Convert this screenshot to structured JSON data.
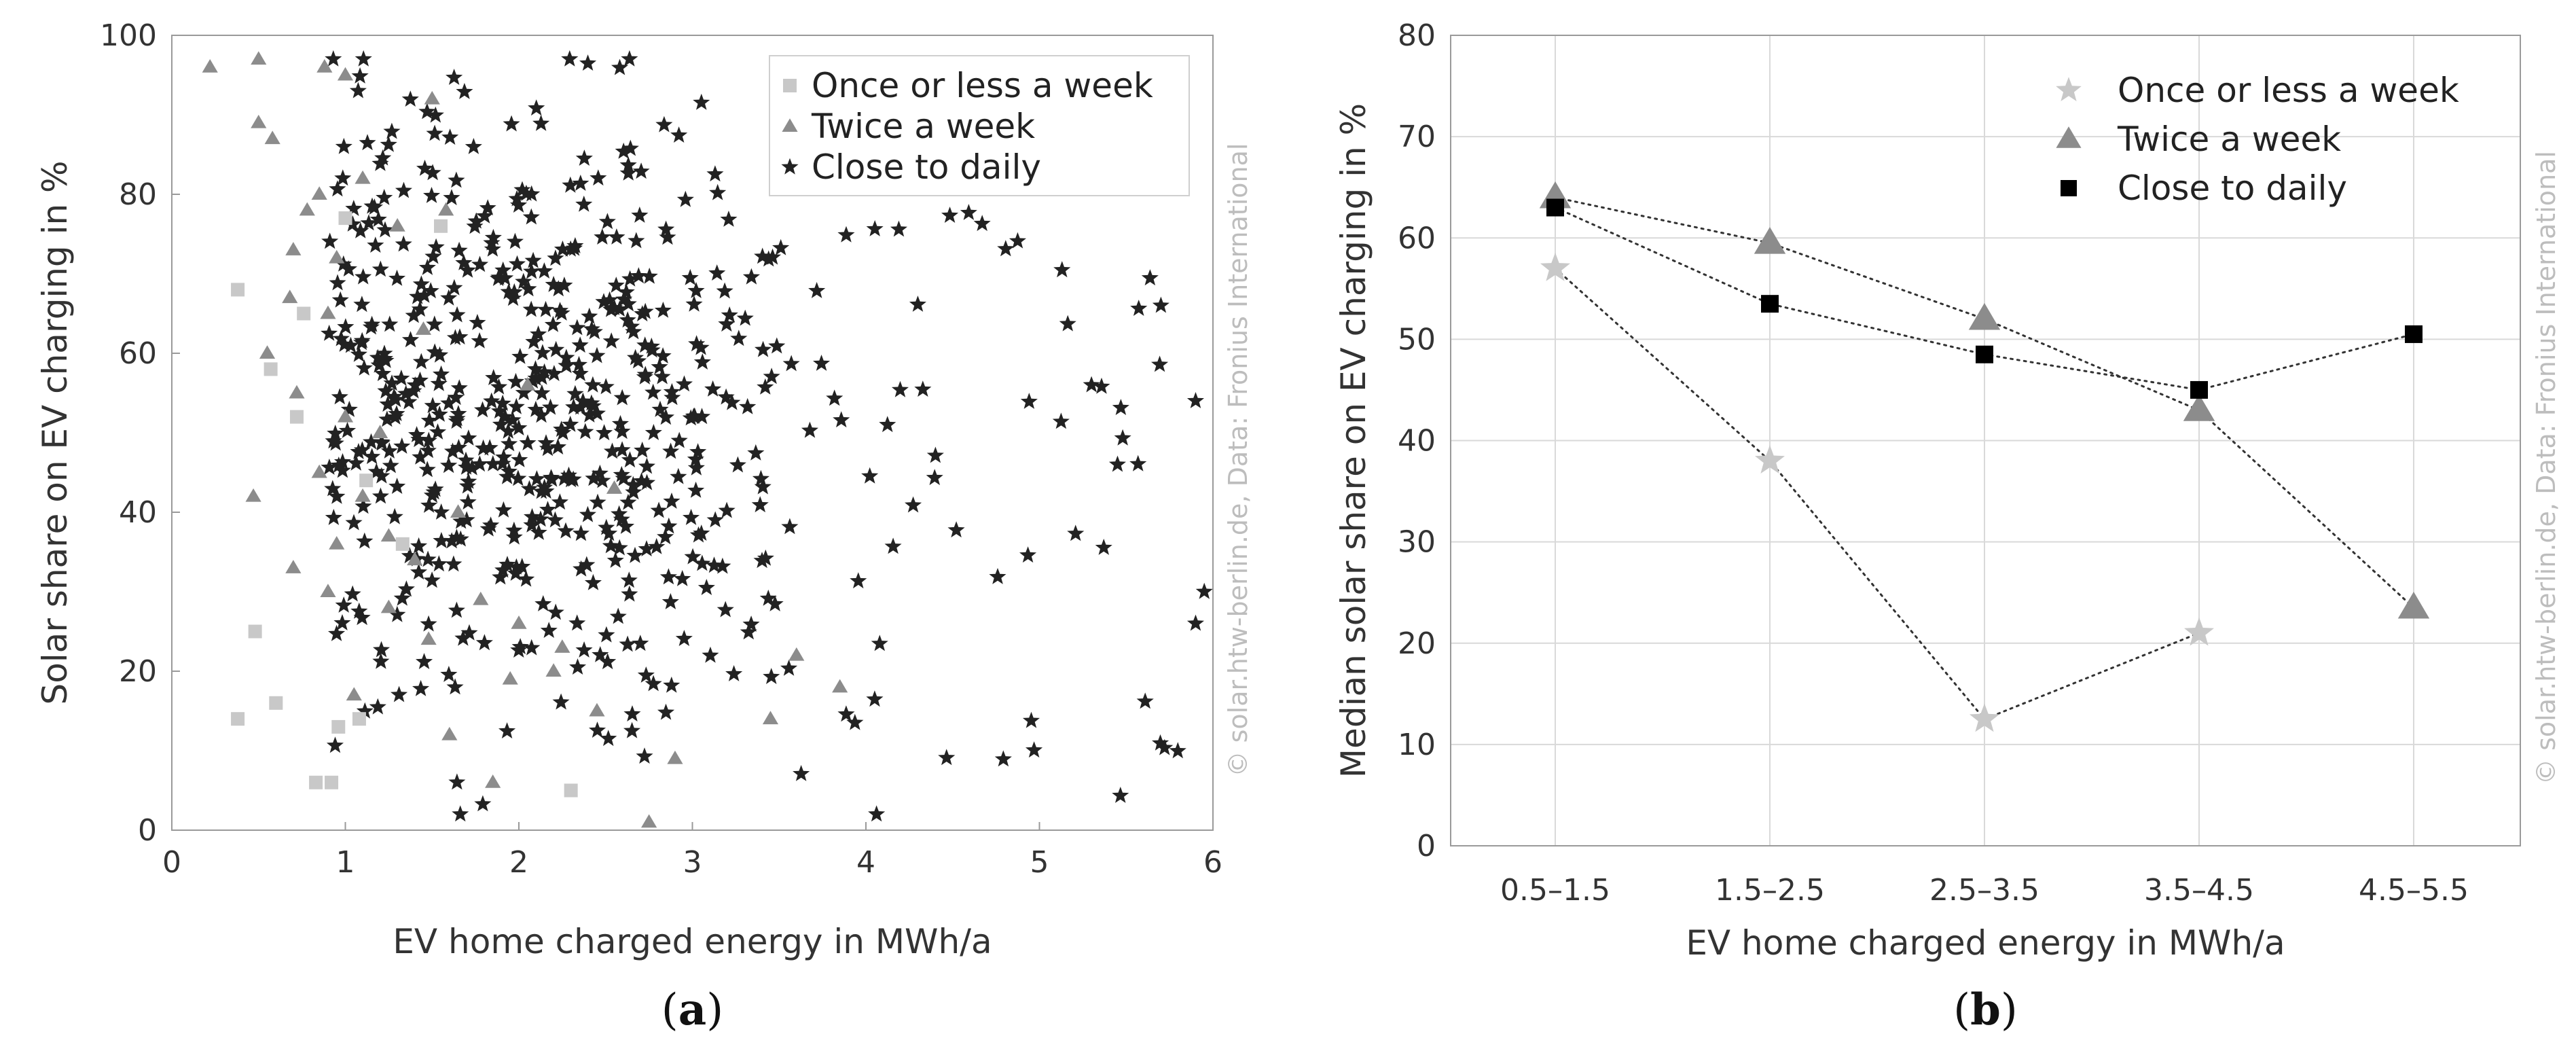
{
  "chart_data": [
    {
      "panel_label": "(a)",
      "type": "scatter",
      "xlabel": "EV home charged energy in MWh/a",
      "ylabel": "Solar share on EV charging in %",
      "xlim": [
        0,
        6
      ],
      "ylim": [
        0,
        100
      ],
      "xticks": [
        "0",
        "1",
        "2",
        "3",
        "4",
        "5",
        "6"
      ],
      "yticks": [
        "0",
        "20",
        "40",
        "60",
        "80",
        "100"
      ],
      "legend_position": "top-right",
      "watermark": "© solar.htw-berlin.de, Data: Fronius International",
      "series": [
        {
          "name": "Once or less a week",
          "marker": "square",
          "color": "#c8c8c8",
          "points": [
            [
              0.38,
              68
            ],
            [
              0.57,
              58
            ],
            [
              0.72,
              52
            ],
            [
              0.76,
              65
            ],
            [
              1.0,
              77
            ],
            [
              1.12,
              44
            ],
            [
              1.33,
              36
            ],
            [
              0.48,
              25
            ],
            [
              0.6,
              16
            ],
            [
              0.38,
              14
            ],
            [
              0.96,
              13
            ],
            [
              1.08,
              14
            ],
            [
              0.83,
              6
            ],
            [
              0.92,
              6
            ],
            [
              2.3,
              5
            ],
            [
              1.55,
              76
            ]
          ]
        },
        {
          "name": "Twice a week",
          "marker": "triangle",
          "color": "#8c8c8c",
          "points": [
            [
              0.22,
              96
            ],
            [
              0.5,
              97
            ],
            [
              0.88,
              96
            ],
            [
              1.0,
              95
            ],
            [
              1.5,
              92
            ],
            [
              0.5,
              89
            ],
            [
              0.58,
              87
            ],
            [
              0.85,
              80
            ],
            [
              1.1,
              82
            ],
            [
              0.7,
              73
            ],
            [
              0.78,
              78
            ],
            [
              0.95,
              72
            ],
            [
              1.3,
              76
            ],
            [
              0.68,
              67
            ],
            [
              0.9,
              65
            ],
            [
              1.45,
              63
            ],
            [
              0.55,
              60
            ],
            [
              0.72,
              55
            ],
            [
              1.0,
              52
            ],
            [
              1.2,
              50
            ],
            [
              0.85,
              45
            ],
            [
              1.1,
              42
            ],
            [
              0.47,
              42
            ],
            [
              1.25,
              37
            ],
            [
              1.65,
              40
            ],
            [
              0.95,
              36
            ],
            [
              1.4,
              34
            ],
            [
              0.9,
              30
            ],
            [
              1.25,
              28
            ],
            [
              1.78,
              29
            ],
            [
              1.48,
              24
            ],
            [
              2.0,
              26
            ],
            [
              2.25,
              23
            ],
            [
              1.95,
              19
            ],
            [
              2.2,
              20
            ],
            [
              2.45,
              15
            ],
            [
              2.9,
              9
            ],
            [
              1.6,
              12
            ],
            [
              1.85,
              6
            ],
            [
              2.75,
              1
            ],
            [
              2.05,
              56
            ],
            [
              2.55,
              43
            ],
            [
              3.6,
              22
            ],
            [
              3.85,
              18
            ],
            [
              3.45,
              14
            ],
            [
              1.05,
              17
            ],
            [
              0.7,
              33
            ],
            [
              1.58,
              78
            ]
          ]
        },
        {
          "name": "Close to daily",
          "marker": "star",
          "color": "#222222",
          "note": "dense cloud, individual points approximated"
        }
      ]
    },
    {
      "panel_label": "(b)",
      "type": "line",
      "xlabel": "EV home charged energy in MWh/a",
      "ylabel": "Median solar share on EV charging in %",
      "categories": [
        "0.5–1.5",
        "1.5–2.5",
        "2.5–3.5",
        "3.5–4.5",
        "4.5–5.5"
      ],
      "ylim": [
        0,
        80
      ],
      "yticks": [
        "0",
        "10",
        "20",
        "30",
        "40",
        "50",
        "60",
        "70",
        "80"
      ],
      "legend_position": "top-right",
      "grid": true,
      "watermark": "© solar.htw-berlin.de, Data: Fronius International",
      "series": [
        {
          "name": "Once or less a week",
          "marker": "star",
          "color": "#c8c8c8",
          "values": [
            57,
            38,
            12.5,
            21,
            null
          ]
        },
        {
          "name": "Twice a week",
          "marker": "triangle",
          "color": "#8c8c8c",
          "values": [
            64,
            59.5,
            52,
            43,
            23.5
          ]
        },
        {
          "name": "Close to daily",
          "marker": "square",
          "color": "#000000",
          "values": [
            63,
            53.5,
            48.5,
            45,
            50.5
          ]
        }
      ]
    }
  ]
}
